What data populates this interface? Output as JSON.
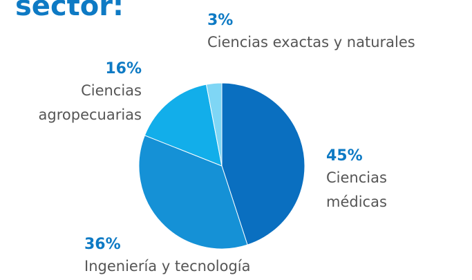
{
  "chart_data": {
    "type": "pie",
    "title": "sector:",
    "categories": [
      "Ciencias médicas",
      "Ingeniería y tecnología",
      "Ciencias agropecuarias",
      "Ciencias exactas y naturales"
    ],
    "values": [
      45,
      36,
      16,
      3
    ],
    "value_labels": [
      "45%",
      "36%",
      "16%",
      "3%"
    ],
    "colors": [
      "#0a6fc0",
      "#1591d6",
      "#12aeea",
      "#7fd6f5"
    ]
  }
}
